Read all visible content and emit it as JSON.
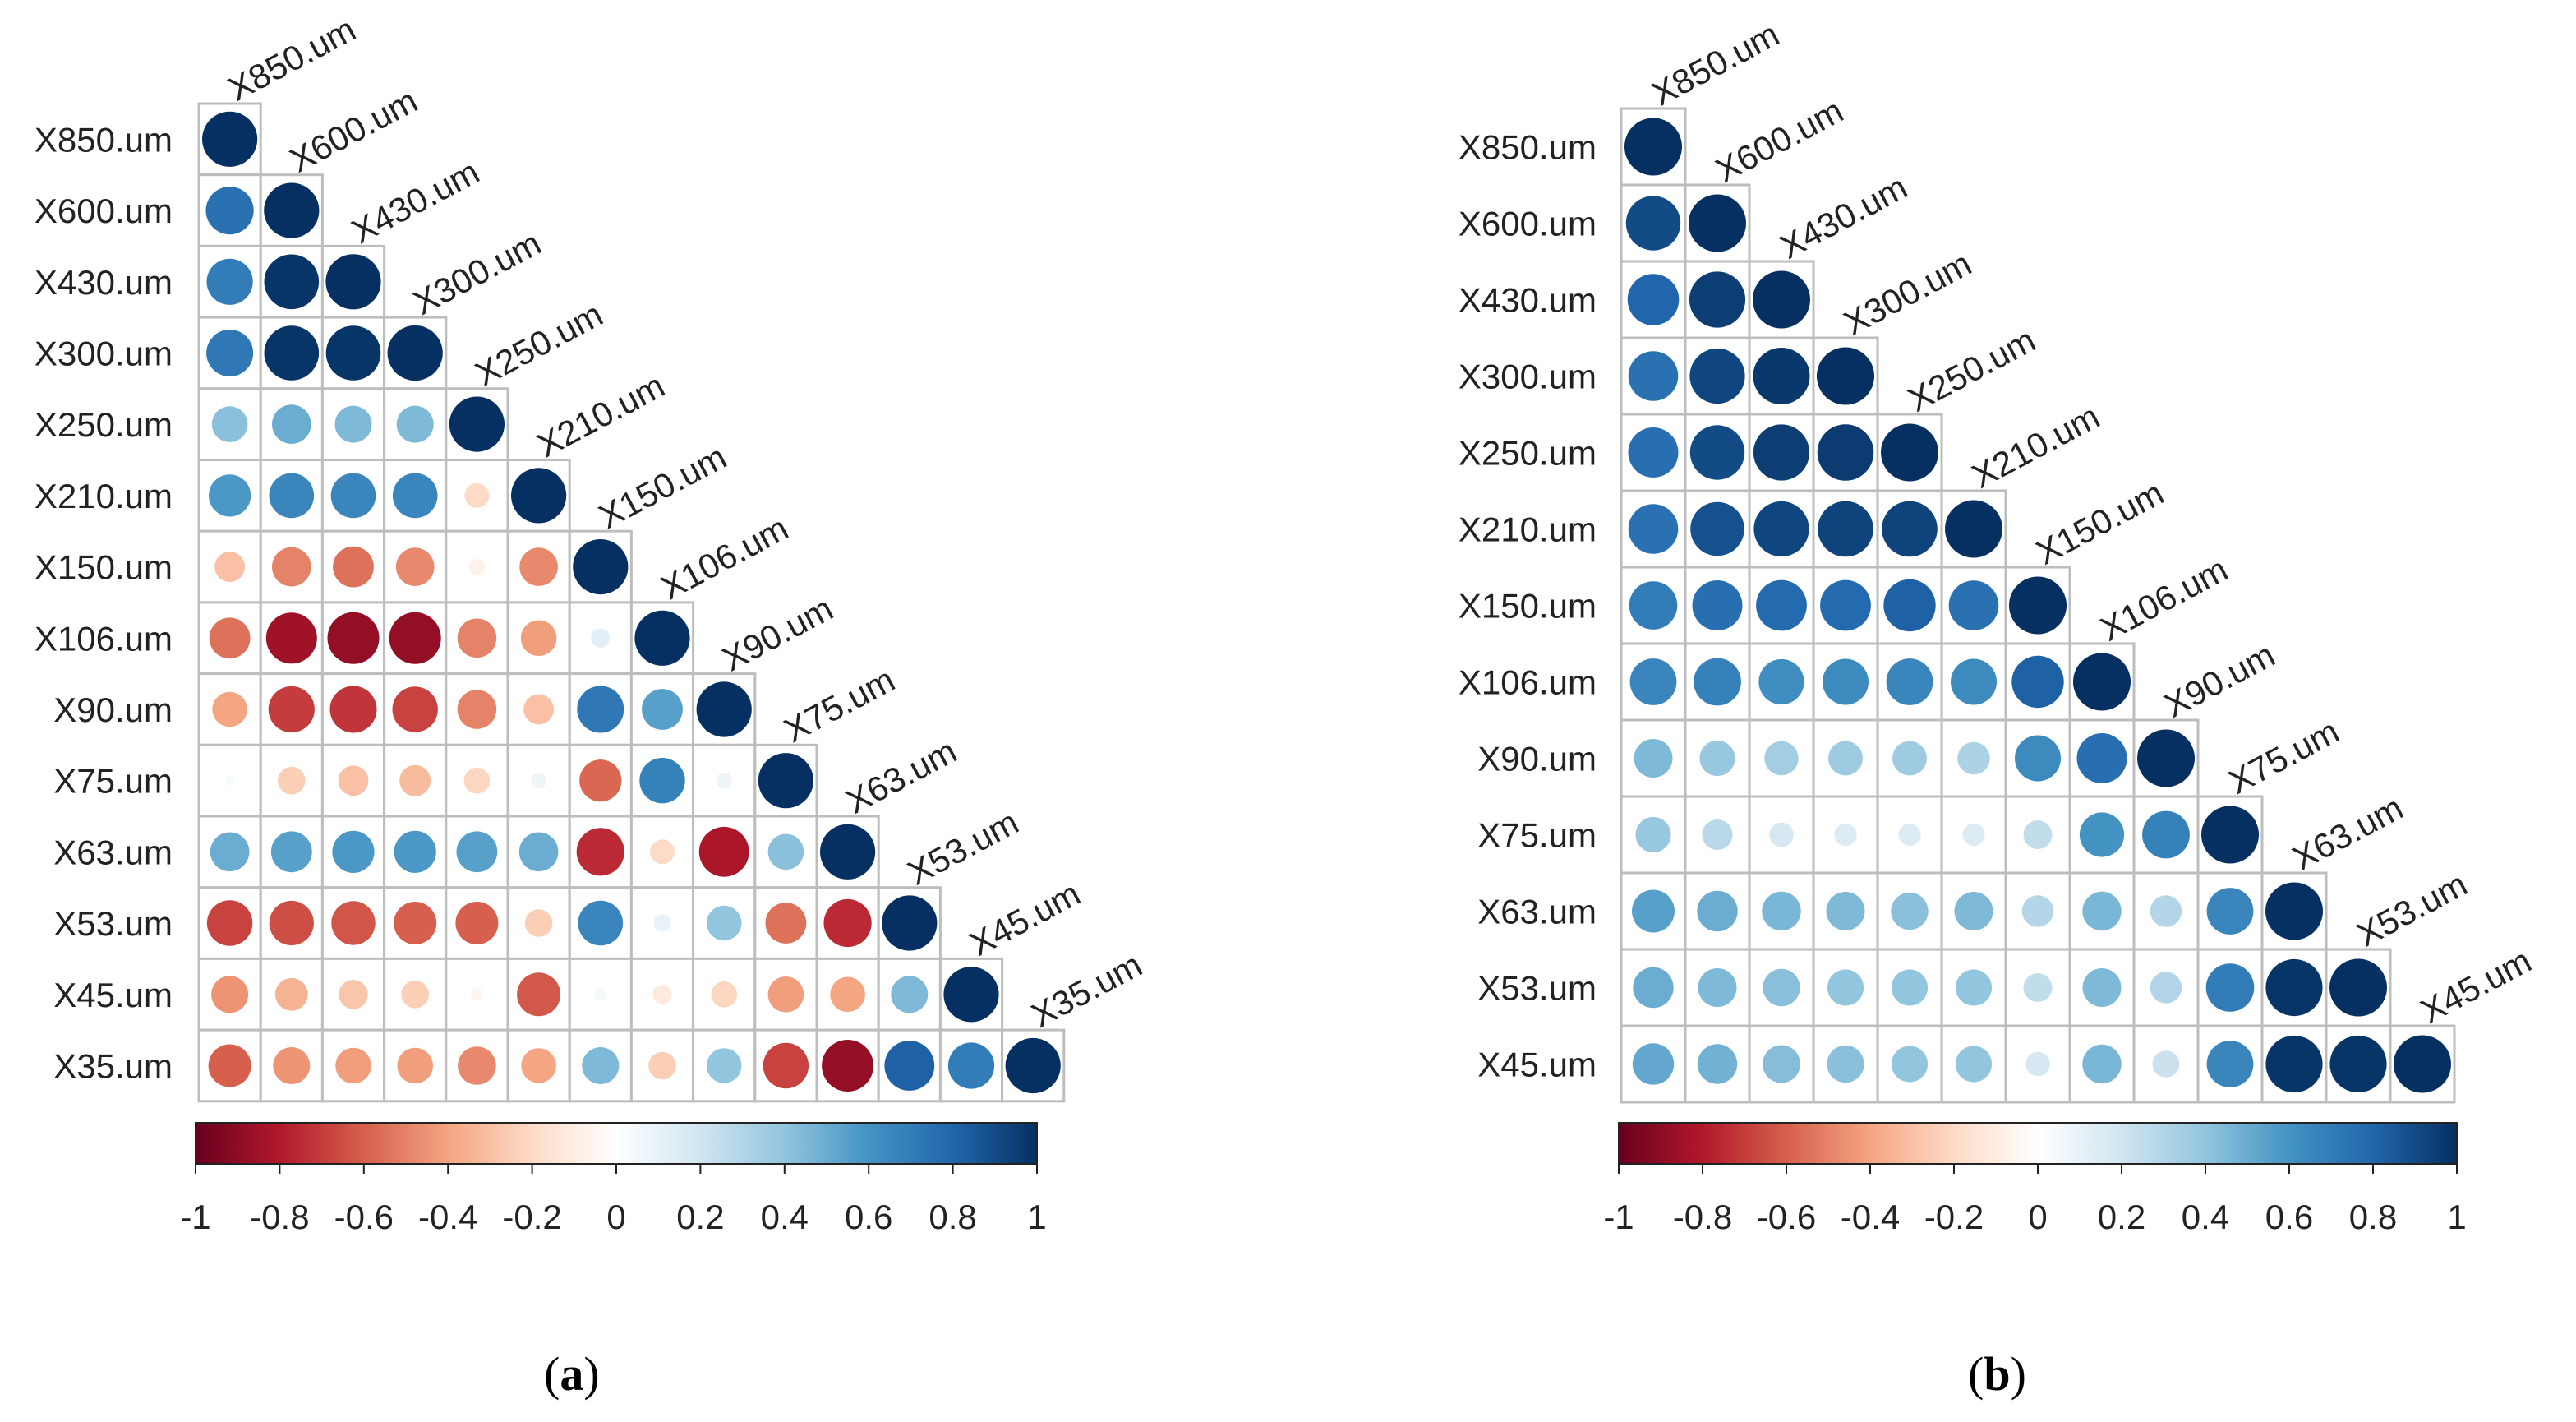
{
  "figure": {
    "panels": [
      {
        "caption_open": "(",
        "caption_letter": "a",
        "caption_close": ")"
      },
      {
        "caption_open": "(",
        "caption_letter": "b",
        "caption_close": ")"
      }
    ]
  },
  "colors": {
    "scale": [
      "#67001F",
      "#B2182B",
      "#D6604D",
      "#F4A582",
      "#FDDBC7",
      "#FFFFFF",
      "#D1E5F0",
      "#92C5DE",
      "#4393C3",
      "#2166AC",
      "#053061"
    ],
    "grid": "#BDBDBD",
    "text": "#222222"
  },
  "chart_data": [
    {
      "type": "heatmap",
      "subtype": "correlation-matrix-lower-triangle",
      "title": "",
      "labels": [
        "X850.um",
        "X600.um",
        "X430.um",
        "X300.um",
        "X250.um",
        "X210.um",
        "X150.um",
        "X106.um",
        "X90.um",
        "X75.um",
        "X63.um",
        "X53.um",
        "X45.um",
        "X35.um"
      ],
      "color_range": [
        -1,
        1
      ],
      "colorbar_ticks": [
        "-1",
        "-0.8",
        "-0.6",
        "-0.4",
        "-0.2",
        "0",
        "0.2",
        "0.4",
        "0.6",
        "0.8",
        "1"
      ],
      "matrix": [
        [
          1
        ],
        [
          0.75,
          1
        ],
        [
          0.7,
          0.98,
          1
        ],
        [
          0.72,
          0.98,
          0.98,
          1
        ],
        [
          0.42,
          0.5,
          0.45,
          0.45,
          1
        ],
        [
          0.58,
          0.66,
          0.66,
          0.66,
          -0.2,
          1
        ],
        [
          -0.3,
          -0.5,
          -0.55,
          -0.48,
          -0.08,
          -0.48,
          1
        ],
        [
          -0.55,
          -0.85,
          -0.88,
          -0.88,
          -0.5,
          -0.42,
          0.12,
          1
        ],
        [
          -0.4,
          -0.7,
          -0.72,
          -0.68,
          -0.5,
          -0.3,
          0.72,
          0.55,
          1
        ],
        [
          0.03,
          -0.25,
          -0.3,
          -0.32,
          -0.22,
          0.08,
          -0.58,
          0.68,
          0.08,
          1
        ],
        [
          0.5,
          0.55,
          0.58,
          0.58,
          0.55,
          0.5,
          -0.75,
          -0.2,
          -0.82,
          0.42,
          1
        ],
        [
          -0.68,
          -0.65,
          -0.63,
          -0.6,
          -0.6,
          -0.25,
          0.66,
          0.1,
          0.4,
          -0.55,
          -0.75,
          1
        ],
        [
          -0.45,
          -0.35,
          -0.28,
          -0.25,
          -0.05,
          -0.62,
          0.05,
          -0.12,
          -0.22,
          -0.42,
          -0.4,
          0.45,
          1
        ],
        [
          -0.6,
          -0.45,
          -0.42,
          -0.42,
          -0.48,
          -0.4,
          0.45,
          -0.25,
          0.4,
          -0.68,
          -0.88,
          0.82,
          0.7,
          1
        ]
      ]
    },
    {
      "type": "heatmap",
      "subtype": "correlation-matrix-lower-triangle",
      "title": "",
      "labels": [
        "X850.um",
        "X600.um",
        "X430.um",
        "X300.um",
        "X250.um",
        "X210.um",
        "X150.um",
        "X106.um",
        "X90.um",
        "X75.um",
        "X63.um",
        "X53.um",
        "X45.um"
      ],
      "color_range": [
        -1,
        1
      ],
      "colorbar_ticks": [
        "-1",
        "-0.8",
        "-0.6",
        "-0.4",
        "-0.2",
        "0",
        "0.2",
        "0.4",
        "0.6",
        "0.8",
        "1"
      ],
      "matrix": [
        [
          1
        ],
        [
          0.9,
          1
        ],
        [
          0.8,
          0.95,
          1
        ],
        [
          0.75,
          0.92,
          0.97,
          1
        ],
        [
          0.76,
          0.9,
          0.95,
          0.96,
          1
        ],
        [
          0.75,
          0.88,
          0.92,
          0.93,
          0.93,
          1
        ],
        [
          0.7,
          0.76,
          0.78,
          0.78,
          0.82,
          0.75,
          1
        ],
        [
          0.66,
          0.68,
          0.62,
          0.64,
          0.66,
          0.64,
          0.82,
          1
        ],
        [
          0.45,
          0.38,
          0.35,
          0.36,
          0.36,
          0.32,
          0.64,
          0.76,
          1
        ],
        [
          0.38,
          0.28,
          0.18,
          0.15,
          0.15,
          0.15,
          0.25,
          0.6,
          0.68,
          1
        ],
        [
          0.55,
          0.5,
          0.46,
          0.45,
          0.42,
          0.45,
          0.3,
          0.46,
          0.3,
          0.66,
          1
        ],
        [
          0.5,
          0.45,
          0.42,
          0.4,
          0.4,
          0.4,
          0.25,
          0.45,
          0.3,
          0.7,
          0.98,
          1
        ],
        [
          0.52,
          0.48,
          0.43,
          0.42,
          0.4,
          0.4,
          0.18,
          0.46,
          0.22,
          0.66,
          0.98,
          0.98,
          1
        ]
      ]
    }
  ]
}
